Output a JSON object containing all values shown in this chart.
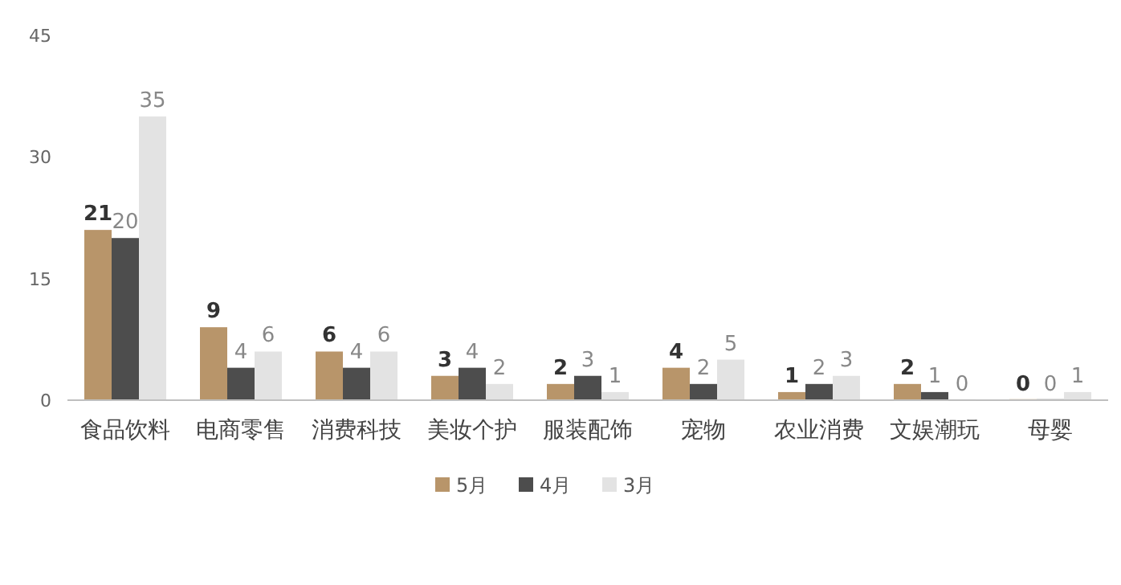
{
  "chart_data": {
    "type": "bar",
    "categories": [
      "食品饮料",
      "电商零售",
      "消费科技",
      "美妆个护",
      "服装配饰",
      "宠物",
      "农业消费",
      "文娱潮玩",
      "母婴"
    ],
    "series": [
      {
        "name": "5月",
        "color": "#b8956a",
        "values": [
          21,
          9,
          6,
          3,
          2,
          4,
          1,
          2,
          0
        ]
      },
      {
        "name": "4月",
        "color": "#4d4d4d",
        "values": [
          20,
          4,
          4,
          4,
          3,
          2,
          2,
          1,
          0
        ]
      },
      {
        "name": "3月",
        "color": "#e3e3e3",
        "values": [
          35,
          6,
          6,
          2,
          1,
          5,
          3,
          0,
          1
        ]
      }
    ],
    "ylim": [
      0,
      45
    ],
    "yticks": [
      0,
      15,
      30,
      45
    ],
    "data_labels": true,
    "grid": false,
    "legend": "bottom"
  }
}
